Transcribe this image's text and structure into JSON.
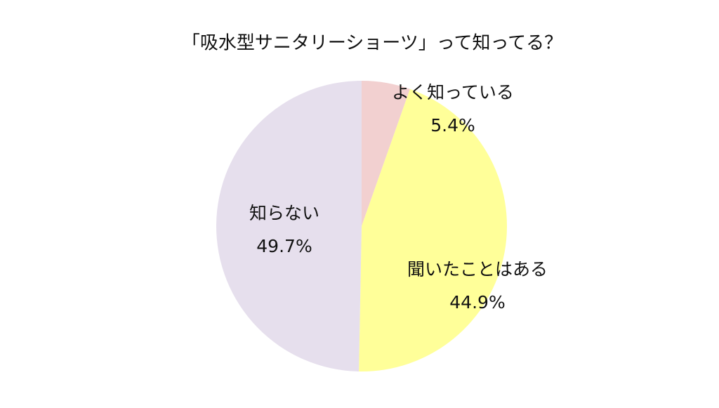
{
  "chart_data": {
    "type": "pie",
    "title": "「吸水型サニタリーショーツ」って知ってる？",
    "categories": [
      "よく知っている",
      "聞いたことはある",
      "知らない"
    ],
    "values": [
      5.4,
      44.9,
      49.7
    ],
    "value_labels": [
      "5.4%",
      "44.9%",
      "49.7%"
    ],
    "colors": [
      "#f2d0d0",
      "#ffff99",
      "#e6dfed"
    ]
  }
}
